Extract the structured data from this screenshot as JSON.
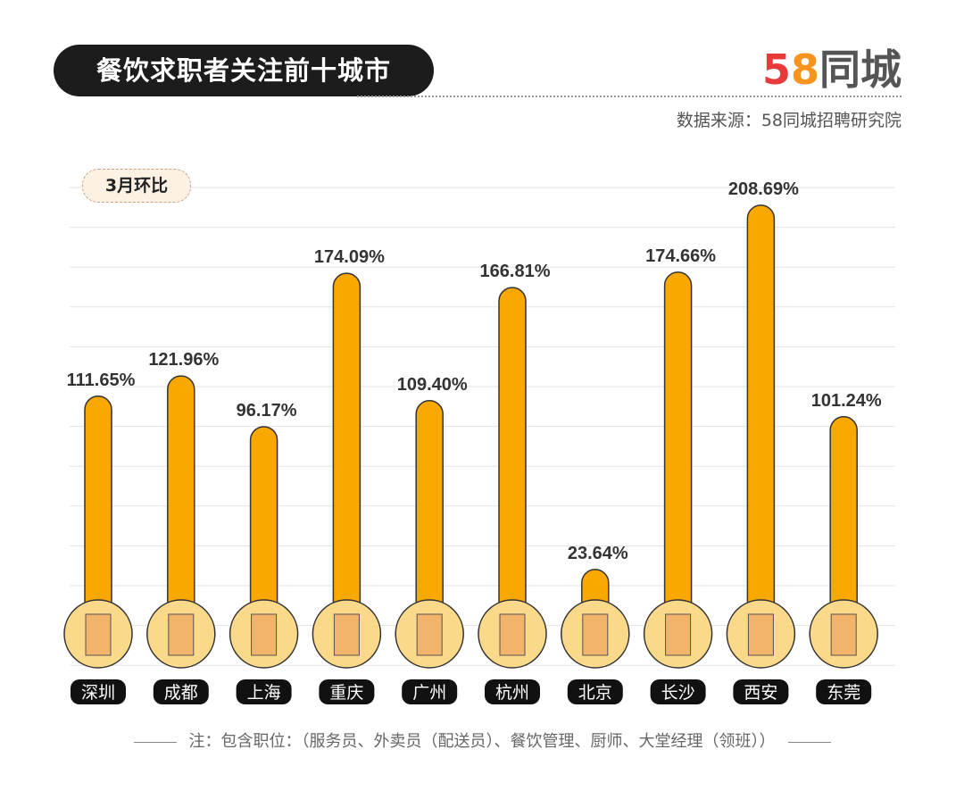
{
  "header": {
    "title": "餐饮求职者关注前十城市",
    "logo_text": "58同城",
    "source": "数据来源：58同城招聘研究院"
  },
  "chart_data": {
    "type": "bar",
    "legend_badge": "3月环比",
    "categories": [
      "深圳",
      "成都",
      "上海",
      "重庆",
      "广州",
      "杭州",
      "北京",
      "长沙",
      "西安",
      "东莞"
    ],
    "values": [
      111.65,
      121.96,
      96.17,
      174.09,
      109.4,
      166.81,
      23.64,
      174.66,
      208.69,
      101.24
    ],
    "labels": [
      "111.65%",
      "121.96%",
      "96.17%",
      "174.09%",
      "109.40%",
      "166.81%",
      "23.64%",
      "174.66%",
      "208.69%",
      "101.24%"
    ],
    "unit": "%",
    "grid": true,
    "bar_color": "#f9a800",
    "icon_color": "#fbd98a"
  },
  "footer": {
    "note": "注：包含职位：（服务员、外卖员（配送员）、餐饮管理、厨师、大堂经理（领班））"
  }
}
